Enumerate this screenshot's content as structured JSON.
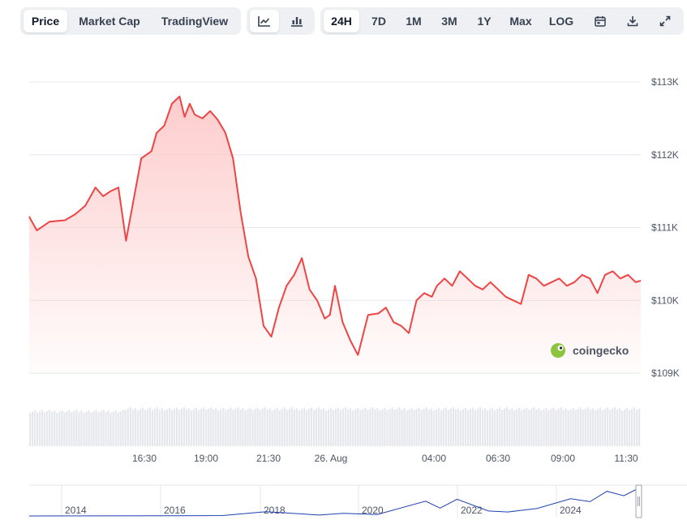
{
  "toolbar": {
    "view_tabs": [
      "Price",
      "Market Cap",
      "TradingView"
    ],
    "active_view": "Price",
    "chart_type_icons": [
      "line-chart-icon",
      "candlestick-chart-icon"
    ],
    "active_chart_type": "line-chart-icon",
    "ranges": [
      "24H",
      "7D",
      "1M",
      "3M",
      "1Y",
      "Max",
      "LOG"
    ],
    "active_range": "24H",
    "tool_icons": [
      "calendar-icon",
      "download-icon",
      "expand-icon"
    ]
  },
  "watermark": {
    "text": "coingecko",
    "icon": "coingecko-logo-icon"
  },
  "colors": {
    "line": "#ef4444",
    "fill_top": "#fecaca",
    "grid": "#e5e7eb",
    "volume": "#e5e7eb",
    "navigator_line": "#1e40af",
    "accent": "#111827"
  },
  "chart_data": {
    "type": "line",
    "y_ticks": [
      "$113K",
      "$112K",
      "$111K",
      "$110K",
      "$109K"
    ],
    "x_ticks": [
      "16:30",
      "19:00",
      "21:30",
      "26. Aug",
      "04:00",
      "06:30",
      "09:00",
      "11:30"
    ],
    "ylim": [
      109000,
      113000
    ],
    "xlim": [
      0,
      24
    ],
    "grid": true,
    "price_series": {
      "x": [
        0,
        0.3,
        0.8,
        1.4,
        1.8,
        2.2,
        2.6,
        2.9,
        3.2,
        3.5,
        3.8,
        4.0,
        4.4,
        4.8,
        5.0,
        5.3,
        5.6,
        5.9,
        6.1,
        6.3,
        6.5,
        6.8,
        7.1,
        7.4,
        7.7,
        8.0,
        8.3,
        8.6,
        8.9,
        9.2,
        9.5,
        9.8,
        10.1,
        10.4,
        10.7,
        11.0,
        11.3,
        11.6,
        11.8,
        12.0,
        12.3,
        12.6,
        12.9,
        13.3,
        13.7,
        14.0,
        14.3,
        14.6,
        14.9,
        15.2,
        15.5,
        15.8,
        16.0,
        16.3,
        16.6,
        16.9,
        17.2,
        17.5,
        17.8,
        18.1,
        18.4,
        18.7,
        19.0,
        19.3,
        19.6,
        19.9,
        20.2,
        20.5,
        20.8,
        21.1,
        21.4,
        21.7,
        22.0,
        22.3,
        22.6,
        22.9,
        23.2,
        23.5,
        23.8,
        24.0
      ],
      "y": [
        111150,
        110960,
        111080,
        111100,
        111180,
        111300,
        111550,
        111430,
        111500,
        111550,
        110820,
        111200,
        111950,
        112050,
        112300,
        112400,
        112700,
        112800,
        112520,
        112700,
        112550,
        112500,
        112600,
        112480,
        112300,
        111950,
        111200,
        110600,
        110300,
        109650,
        109500,
        109900,
        110200,
        110350,
        110580,
        110150,
        110000,
        109750,
        109800,
        110200,
        109700,
        109450,
        109250,
        109800,
        109820,
        109900,
        109700,
        109650,
        109550,
        110000,
        110100,
        110050,
        110200,
        110300,
        110200,
        110400,
        110300,
        110200,
        110150,
        110250,
        110150,
        110050,
        110000,
        109950,
        110350,
        110300,
        110200,
        110250,
        110300,
        110200,
        110250,
        110350,
        110300,
        110100,
        110350,
        110400,
        110300,
        110350,
        110250,
        110270
      ]
    },
    "volume": "shown as light gray bars beneath the price line, unlabeled",
    "navigator": {
      "x_ticks": [
        "2014",
        "2016",
        "2018",
        "2020",
        "2022",
        "2024"
      ],
      "series": [
        {
          "x": 2013.0,
          "y": 0.1
        },
        {
          "x": 2016.0,
          "y": 0.5
        },
        {
          "x": 2017.0,
          "y": 1.5
        },
        {
          "x": 2017.9,
          "y": 17
        },
        {
          "x": 2019.0,
          "y": 3.5
        },
        {
          "x": 2019.5,
          "y": 11
        },
        {
          "x": 2020.2,
          "y": 6
        },
        {
          "x": 2021.2,
          "y": 60
        },
        {
          "x": 2021.5,
          "y": 32
        },
        {
          "x": 2021.85,
          "y": 68
        },
        {
          "x": 2022.5,
          "y": 20
        },
        {
          "x": 2022.9,
          "y": 16
        },
        {
          "x": 2023.5,
          "y": 30
        },
        {
          "x": 2024.2,
          "y": 70
        },
        {
          "x": 2024.6,
          "y": 58
        },
        {
          "x": 2024.95,
          "y": 100
        },
        {
          "x": 2025.3,
          "y": 82
        },
        {
          "x": 2025.6,
          "y": 112
        }
      ]
    }
  }
}
